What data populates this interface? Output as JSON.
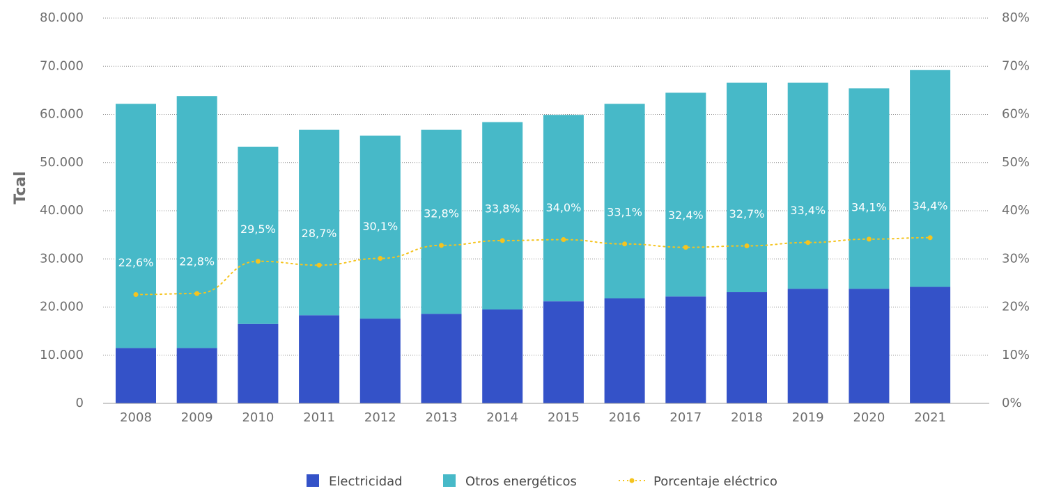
{
  "chart_data": {
    "type": "bar",
    "stacked": true,
    "categories": [
      "2008",
      "2009",
      "2010",
      "2011",
      "2012",
      "2013",
      "2014",
      "2015",
      "2016",
      "2017",
      "2018",
      "2019",
      "2020",
      "2021"
    ],
    "series": [
      {
        "name": "Electricidad",
        "color": "#3452c8",
        "axis": "left",
        "values": [
          11500,
          11500,
          16500,
          18300,
          17600,
          18600,
          19500,
          21200,
          21800,
          22200,
          23100,
          23800,
          23800,
          24200
        ]
      },
      {
        "name": "Otros energéticos",
        "color": "#47b9c8",
        "axis": "left",
        "values": [
          50700,
          52300,
          36800,
          38500,
          38000,
          38200,
          38900,
          38700,
          40400,
          42300,
          43500,
          42800,
          41600,
          45000
        ]
      },
      {
        "name": "Porcentaje eléctrico",
        "color": "#f5c41f",
        "type": "line",
        "axis": "right",
        "values": [
          22.6,
          22.8,
          29.5,
          28.7,
          30.1,
          32.8,
          33.8,
          34.0,
          33.1,
          32.4,
          32.7,
          33.4,
          34.1,
          34.4
        ],
        "labels": [
          "22,6%",
          "22,8%",
          "29,5%",
          "28,7%",
          "30,1%",
          "32,8%",
          "33,8%",
          "34,0%",
          "33,1%",
          "32,4%",
          "32,7%",
          "33,4%",
          "34,1%",
          "34,4%"
        ]
      }
    ],
    "ylabel": "Tcal",
    "ylim": [
      0,
      80000
    ],
    "y_ticks": [
      "0",
      "10.000",
      "20.000",
      "30.000",
      "40.000",
      "50.000",
      "60.000",
      "70.000",
      "80.000"
    ],
    "y2lim": [
      0,
      80
    ],
    "y2_ticks": [
      "0%",
      "10%",
      "20%",
      "30%",
      "40%",
      "50%",
      "60%",
      "70%",
      "80%"
    ],
    "grid": true,
    "legend_position": "bottom"
  }
}
